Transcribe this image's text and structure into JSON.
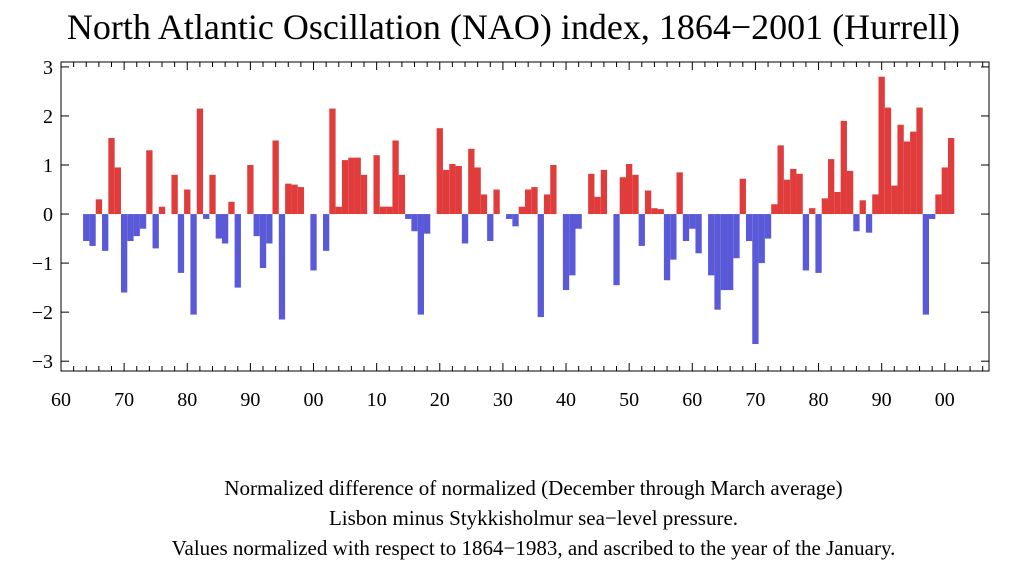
{
  "chart_data": {
    "type": "bar",
    "title": "North Atlantic Oscillation (NAO) index, 1864−2001 (Hurrell)",
    "xlabel": "",
    "ylabel": "",
    "xlim": [
      1860,
      2007
    ],
    "ylim": [
      -3.2,
      3.1
    ],
    "y_ticks": [
      "−3",
      "−2",
      "−1",
      "0",
      "1",
      "2",
      "3"
    ],
    "x_ticks": [
      "60",
      "70",
      "80",
      "90",
      "00",
      "10",
      "20",
      "30",
      "40",
      "50",
      "60",
      "70",
      "80",
      "90",
      "00"
    ],
    "x_tick_years": [
      1860,
      1870,
      1880,
      1890,
      1900,
      1910,
      1920,
      1930,
      1940,
      1950,
      1960,
      1970,
      1980,
      1990,
      2000
    ],
    "positive_color": "#e03c3c",
    "negative_color": "#5a5ad8",
    "grid": false,
    "x": [
      1864,
      1865,
      1866,
      1867,
      1868,
      1869,
      1870,
      1871,
      1872,
      1873,
      1874,
      1875,
      1876,
      1877,
      1878,
      1879,
      1880,
      1881,
      1882,
      1883,
      1884,
      1885,
      1886,
      1887,
      1888,
      1889,
      1890,
      1891,
      1892,
      1893,
      1894,
      1895,
      1896,
      1897,
      1898,
      1899,
      1900,
      1901,
      1902,
      1903,
      1904,
      1905,
      1906,
      1907,
      1908,
      1909,
      1910,
      1911,
      1912,
      1913,
      1914,
      1915,
      1916,
      1917,
      1918,
      1919,
      1920,
      1921,
      1922,
      1923,
      1924,
      1925,
      1926,
      1927,
      1928,
      1929,
      1930,
      1931,
      1932,
      1933,
      1934,
      1935,
      1936,
      1937,
      1938,
      1939,
      1940,
      1941,
      1942,
      1943,
      1944,
      1945,
      1946,
      1947,
      1948,
      1949,
      1950,
      1951,
      1952,
      1953,
      1954,
      1955,
      1956,
      1957,
      1958,
      1959,
      1960,
      1961,
      1962,
      1963,
      1964,
      1965,
      1966,
      1967,
      1968,
      1969,
      1970,
      1971,
      1972,
      1973,
      1974,
      1975,
      1976,
      1977,
      1978,
      1979,
      1980,
      1981,
      1982,
      1983,
      1984,
      1985,
      1986,
      1987,
      1988,
      1989,
      1990,
      1991,
      1992,
      1993,
      1994,
      1995,
      1996,
      1997,
      1998,
      1999,
      2000,
      2001
    ],
    "values": [
      -0.55,
      -0.65,
      0.3,
      -0.75,
      1.55,
      0.95,
      -1.6,
      -0.55,
      -0.45,
      -0.3,
      1.3,
      -0.7,
      0.15,
      0.0,
      0.8,
      -1.2,
      0.5,
      -2.05,
      2.15,
      -0.1,
      0.8,
      -0.5,
      -0.6,
      0.25,
      -1.5,
      0.0,
      1.0,
      -0.45,
      -1.1,
      -0.6,
      1.5,
      -2.15,
      0.62,
      0.6,
      0.55,
      0.0,
      -1.15,
      0.0,
      -0.75,
      2.15,
      0.15,
      1.1,
      1.15,
      1.15,
      0.8,
      0.0,
      1.2,
      0.15,
      0.15,
      1.5,
      0.8,
      -0.1,
      -0.35,
      -2.05,
      -0.4,
      0.0,
      1.75,
      0.9,
      1.02,
      0.98,
      -0.6,
      1.33,
      0.95,
      0.4,
      -0.55,
      0.5,
      0.0,
      -0.1,
      -0.25,
      0.15,
      0.5,
      0.55,
      -2.1,
      0.4,
      1.0,
      0.0,
      -1.55,
      -1.25,
      -0.3,
      0.0,
      0.82,
      0.35,
      0.9,
      0.0,
      -1.45,
      0.75,
      1.02,
      0.8,
      -0.65,
      0.48,
      0.12,
      0.1,
      -1.35,
      -0.93,
      0.85,
      -0.55,
      -0.3,
      -0.8,
      0.0,
      -1.25,
      -1.95,
      -1.55,
      -1.55,
      -0.9,
      0.72,
      -0.55,
      -2.65,
      -1.0,
      -0.5,
      0.2,
      1.4,
      0.7,
      0.92,
      0.82,
      -1.15,
      0.12,
      -1.2,
      0.32,
      1.12,
      0.45,
      1.9,
      0.88,
      -0.35,
      0.28,
      -0.38,
      0.4,
      2.8,
      2.17,
      0.58,
      1.82,
      1.48,
      1.68,
      2.17,
      -2.05,
      -0.1,
      0.4,
      0.95,
      1.55
    ]
  },
  "captions": [
    "Normalized difference of normalized (December through March average)",
    "Lisbon minus Stykkisholmur sea−level pressure.",
    "Values normalized with respect to 1864−1983, and ascribed to the year of the January."
  ]
}
